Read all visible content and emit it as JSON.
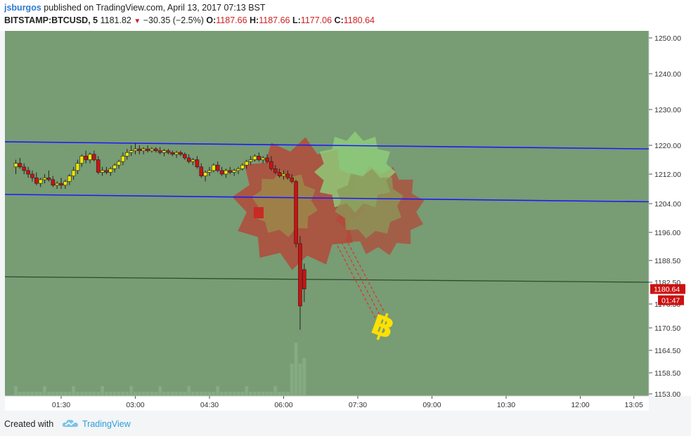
{
  "header": {
    "author": "jsburgos",
    "published_text": "published on TradingView.com, April 13, 2017 07:13 BST",
    "symbol": "BITSTAMP:BTCUSD, 5",
    "last": "1181.82",
    "change_arrow": "▼",
    "change": "−30.35 (−2.5%)",
    "open_label": "O:",
    "open_value": "1187.66",
    "high_label": "H:",
    "high_value": "1187.66",
    "low_label": "L:",
    "low_value": "1177.06",
    "close_label": "C:",
    "close_value": "1180.64"
  },
  "footer": {
    "created_with": "Created with",
    "brand": "TradingView",
    "logo_icon": "tradingview-cloud-icon"
  },
  "colors": {
    "plot_background": "#789c74",
    "channel_lines": "#1a1aff",
    "horizontal_line": "#2d4a2d",
    "bull_candle": "#f2e600",
    "bear_candle": "#cc1111",
    "last_price_badge": "#cc1111",
    "bitcoin_icon": "#ffe000"
  },
  "chart_data": {
    "type": "candlestick",
    "price_axis_ticks": [
      "1250.00",
      "1240.00",
      "1230.00",
      "1220.00",
      "1212.00",
      "1204.00",
      "1196.00",
      "1188.50",
      "1182.50",
      "1176.50",
      "1170.50",
      "1164.50",
      "1158.50",
      "1153.00"
    ],
    "time_axis_ticks": [
      "01:30",
      "03:00",
      "04:30",
      "06:00",
      "07:30",
      "09:00",
      "10:30",
      "12:00",
      "13:05"
    ],
    "ylim": [
      1153,
      1250
    ],
    "last_price_label": "1180.64",
    "countdown_label": "01:47",
    "channel_upper": {
      "from": [
        "00:30",
        1221
      ],
      "to": [
        "13:30",
        1219
      ]
    },
    "channel_lower": {
      "from": [
        "00:30",
        1206.5
      ],
      "to": [
        "13:30",
        1204.5
      ]
    },
    "horizontal_line": {
      "from": [
        "00:30",
        1184
      ],
      "to": [
        "13:30",
        1182.5
      ]
    },
    "candles": [
      {
        "t": "00:35",
        "o": 1214,
        "h": 1216,
        "l": 1212,
        "c": 1215
      },
      {
        "t": "00:40",
        "o": 1215,
        "h": 1216.5,
        "l": 1213.5,
        "c": 1214
      },
      {
        "t": "00:45",
        "o": 1214,
        "h": 1215,
        "l": 1212,
        "c": 1213
      },
      {
        "t": "00:50",
        "o": 1213,
        "h": 1214,
        "l": 1211,
        "c": 1212
      },
      {
        "t": "00:55",
        "o": 1212,
        "h": 1213,
        "l": 1210,
        "c": 1211
      },
      {
        "t": "01:00",
        "o": 1211,
        "h": 1212.5,
        "l": 1209,
        "c": 1209.5
      },
      {
        "t": "01:05",
        "o": 1209.5,
        "h": 1211,
        "l": 1208.5,
        "c": 1210.5
      },
      {
        "t": "01:10",
        "o": 1210.5,
        "h": 1212,
        "l": 1209.5,
        "c": 1211
      },
      {
        "t": "01:15",
        "o": 1211,
        "h": 1213,
        "l": 1210,
        "c": 1210.5
      },
      {
        "t": "01:20",
        "o": 1210.5,
        "h": 1211.5,
        "l": 1208.5,
        "c": 1209
      },
      {
        "t": "01:25",
        "o": 1209,
        "h": 1210,
        "l": 1208,
        "c": 1209.5
      },
      {
        "t": "01:30",
        "o": 1209.5,
        "h": 1211,
        "l": 1208,
        "c": 1209
      },
      {
        "t": "01:35",
        "o": 1209,
        "h": 1210.5,
        "l": 1208,
        "c": 1210
      },
      {
        "t": "01:40",
        "o": 1210,
        "h": 1212,
        "l": 1209,
        "c": 1211.5
      },
      {
        "t": "01:45",
        "o": 1211.5,
        "h": 1214,
        "l": 1210.5,
        "c": 1213
      },
      {
        "t": "01:50",
        "o": 1213,
        "h": 1216,
        "l": 1212,
        "c": 1215
      },
      {
        "t": "01:55",
        "o": 1215,
        "h": 1217.5,
        "l": 1214,
        "c": 1217
      },
      {
        "t": "02:00",
        "o": 1217,
        "h": 1218.5,
        "l": 1215,
        "c": 1216
      },
      {
        "t": "02:05",
        "o": 1216,
        "h": 1218,
        "l": 1215,
        "c": 1217.5
      },
      {
        "t": "02:10",
        "o": 1217.5,
        "h": 1218.5,
        "l": 1215.5,
        "c": 1216
      },
      {
        "t": "02:15",
        "o": 1216,
        "h": 1217,
        "l": 1212,
        "c": 1212.5
      },
      {
        "t": "02:20",
        "o": 1212.5,
        "h": 1214,
        "l": 1211.5,
        "c": 1213
      },
      {
        "t": "02:25",
        "o": 1213,
        "h": 1214,
        "l": 1212,
        "c": 1212.5
      },
      {
        "t": "02:30",
        "o": 1212.5,
        "h": 1214,
        "l": 1211.5,
        "c": 1213.5
      },
      {
        "t": "02:35",
        "o": 1213.5,
        "h": 1215,
        "l": 1212.5,
        "c": 1214.5
      },
      {
        "t": "02:40",
        "o": 1214.5,
        "h": 1216,
        "l": 1213.5,
        "c": 1215.5
      },
      {
        "t": "02:45",
        "o": 1215.5,
        "h": 1218,
        "l": 1214.5,
        "c": 1217
      },
      {
        "t": "02:50",
        "o": 1217,
        "h": 1219,
        "l": 1216,
        "c": 1218
      },
      {
        "t": "02:55",
        "o": 1218,
        "h": 1220,
        "l": 1217,
        "c": 1218.5
      },
      {
        "t": "03:00",
        "o": 1218.5,
        "h": 1220.5,
        "l": 1217.5,
        "c": 1219
      },
      {
        "t": "03:05",
        "o": 1219,
        "h": 1220,
        "l": 1217.5,
        "c": 1218.5
      },
      {
        "t": "03:10",
        "o": 1218.5,
        "h": 1219.5,
        "l": 1217.5,
        "c": 1219
      },
      {
        "t": "03:15",
        "o": 1219,
        "h": 1220,
        "l": 1218,
        "c": 1218.5
      },
      {
        "t": "03:20",
        "o": 1218.5,
        "h": 1219.5,
        "l": 1218,
        "c": 1219
      },
      {
        "t": "03:25",
        "o": 1219,
        "h": 1219.5,
        "l": 1218,
        "c": 1218.5
      },
      {
        "t": "03:30",
        "o": 1218.5,
        "h": 1219.5,
        "l": 1217.5,
        "c": 1218
      },
      {
        "t": "03:35",
        "o": 1218,
        "h": 1219,
        "l": 1217,
        "c": 1218.5
      },
      {
        "t": "03:40",
        "o": 1218.5,
        "h": 1219,
        "l": 1217.5,
        "c": 1218
      },
      {
        "t": "03:45",
        "o": 1218,
        "h": 1218.5,
        "l": 1217,
        "c": 1217.5
      },
      {
        "t": "03:50",
        "o": 1217.5,
        "h": 1218.5,
        "l": 1216.5,
        "c": 1218
      },
      {
        "t": "03:55",
        "o": 1218,
        "h": 1218.5,
        "l": 1217,
        "c": 1217.5
      },
      {
        "t": "04:00",
        "o": 1217.5,
        "h": 1218,
        "l": 1216,
        "c": 1216.5
      },
      {
        "t": "04:05",
        "o": 1216.5,
        "h": 1217.5,
        "l": 1215,
        "c": 1215.5
      },
      {
        "t": "04:10",
        "o": 1215.5,
        "h": 1216.5,
        "l": 1214.5,
        "c": 1216
      },
      {
        "t": "04:15",
        "o": 1216,
        "h": 1217,
        "l": 1213.5,
        "c": 1214
      },
      {
        "t": "04:20",
        "o": 1214,
        "h": 1215,
        "l": 1211,
        "c": 1211.5
      },
      {
        "t": "04:25",
        "o": 1211.5,
        "h": 1213,
        "l": 1210,
        "c": 1212.5
      },
      {
        "t": "04:30",
        "o": 1212.5,
        "h": 1214,
        "l": 1211.5,
        "c": 1213
      },
      {
        "t": "04:35",
        "o": 1213,
        "h": 1215,
        "l": 1212.5,
        "c": 1214.5
      },
      {
        "t": "04:40",
        "o": 1214.5,
        "h": 1215.5,
        "l": 1212.5,
        "c": 1213
      },
      {
        "t": "04:45",
        "o": 1213,
        "h": 1214,
        "l": 1211.5,
        "c": 1212
      },
      {
        "t": "04:50",
        "o": 1212,
        "h": 1213.5,
        "l": 1211,
        "c": 1213
      },
      {
        "t": "04:55",
        "o": 1213,
        "h": 1214,
        "l": 1212,
        "c": 1212.5
      },
      {
        "t": "05:00",
        "o": 1212.5,
        "h": 1213.5,
        "l": 1211.5,
        "c": 1213
      },
      {
        "t": "05:05",
        "o": 1213,
        "h": 1214,
        "l": 1212,
        "c": 1213.5
      },
      {
        "t": "05:10",
        "o": 1213.5,
        "h": 1215,
        "l": 1213,
        "c": 1214.5
      },
      {
        "t": "05:15",
        "o": 1214.5,
        "h": 1216,
        "l": 1213.5,
        "c": 1215.5
      },
      {
        "t": "05:20",
        "o": 1215.5,
        "h": 1217,
        "l": 1214.5,
        "c": 1216
      },
      {
        "t": "05:25",
        "o": 1216,
        "h": 1217.5,
        "l": 1215.5,
        "c": 1217
      },
      {
        "t": "05:30",
        "o": 1217,
        "h": 1218,
        "l": 1215.5,
        "c": 1216
      },
      {
        "t": "05:35",
        "o": 1216,
        "h": 1217,
        "l": 1215,
        "c": 1216.5
      },
      {
        "t": "05:40",
        "o": 1216.5,
        "h": 1217.5,
        "l": 1215,
        "c": 1215.5
      },
      {
        "t": "05:45",
        "o": 1215.5,
        "h": 1217,
        "l": 1213,
        "c": 1213.5
      },
      {
        "t": "05:50",
        "o": 1213.5,
        "h": 1214.5,
        "l": 1212,
        "c": 1212.5
      },
      {
        "t": "05:55",
        "o": 1212.5,
        "h": 1213.5,
        "l": 1211,
        "c": 1211.5
      },
      {
        "t": "06:00",
        "o": 1211.5,
        "h": 1213,
        "l": 1210.5,
        "c": 1212
      },
      {
        "t": "06:05",
        "o": 1212,
        "h": 1213,
        "l": 1210.5,
        "c": 1211
      },
      {
        "t": "06:10",
        "o": 1211,
        "h": 1212,
        "l": 1209.5,
        "c": 1210
      },
      {
        "t": "06:15",
        "o": 1210,
        "h": 1210.5,
        "l": 1192,
        "c": 1193
      },
      {
        "t": "06:20",
        "o": 1193,
        "h": 1195,
        "l": 1170,
        "c": 1176
      },
      {
        "t": "06:25",
        "o": 1186,
        "h": 1187.66,
        "l": 1177.06,
        "c": 1180.64
      }
    ],
    "annotations": [
      "gear-shapes-red",
      "gear-shapes-green",
      "bitcoin-icon",
      "dashed-red-lines"
    ]
  }
}
